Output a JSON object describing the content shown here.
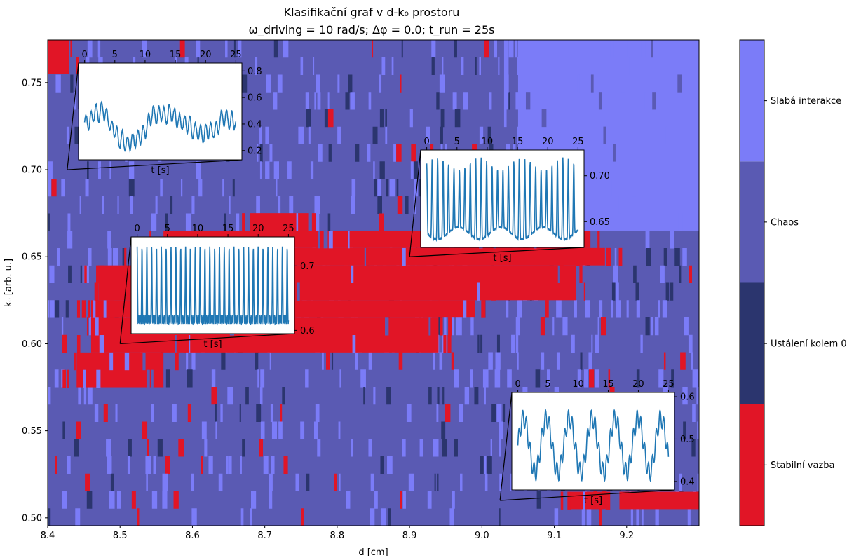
{
  "title": "Klasifikační graf v d-k₀ prostoru",
  "subtitle": "ω_driving = 10 rad/s; Δφ = 0.0; t_run = 25s",
  "colors": {
    "stable": "#e11526",
    "settled": "#2b356e",
    "chaos": "#5a5ab3",
    "weak": "#7b7cf8"
  },
  "chart_data": [
    {
      "type": "heatmap",
      "title": "Klasifikační graf v d-k₀ prostoru",
      "xlabel": "d [cm]",
      "ylabel": "k₀ [arb. u.]",
      "xlim": [
        8.4,
        9.3
      ],
      "ylim": [
        0.4955,
        0.7745
      ],
      "xticks": [
        8.4,
        8.5,
        8.6,
        8.7,
        8.8,
        8.9,
        9.0,
        9.1,
        9.2
      ],
      "xtick_labels": [
        "8.4",
        "8.5",
        "8.6",
        "8.7",
        "8.8",
        "8.9",
        "9.0",
        "9.1",
        "9.2"
      ],
      "yticks": [
        0.5,
        0.55,
        0.6,
        0.65,
        0.7,
        0.75
      ],
      "ytick_labels": [
        "0.50",
        "0.55",
        "0.60",
        "0.65",
        "0.70",
        "0.75"
      ],
      "colorbar": {
        "categories": [
          "Stabilní vazba",
          "Ustálení kolem 0",
          "Chaos",
          "Slabá interakce"
        ],
        "colors": [
          "#e11526",
          "#2b356e",
          "#5a5ab3",
          "#7b7cf8"
        ]
      },
      "regions": [
        {
          "class": "Stabilní vazba",
          "k0_from": 0.595,
          "k0_to": 0.615,
          "d_from": 8.46,
          "d_to": 8.94
        },
        {
          "class": "Stabilní vazba",
          "k0_from": 0.615,
          "k0_to": 0.625,
          "d_from": 8.46,
          "d_to": 8.99
        },
        {
          "class": "Stabilní vazba",
          "k0_from": 0.625,
          "k0_to": 0.645,
          "d_from": 8.47,
          "d_to": 9.13
        },
        {
          "class": "Stabilní vazba",
          "k0_from": 0.645,
          "k0_to": 0.655,
          "d_from": 8.52,
          "d_to": 9.17
        },
        {
          "class": "Stabilní vazba",
          "k0_from": 0.655,
          "k0_to": 0.665,
          "d_from": 8.56,
          "d_to": 9.15
        },
        {
          "class": "Stabilní vazba",
          "k0_from": 0.665,
          "k0_to": 0.675,
          "d_from": 8.68,
          "d_to": 8.76
        },
        {
          "class": "Stabilní vazba",
          "k0_from": 0.575,
          "k0_to": 0.595,
          "d_from": 8.44,
          "d_to": 8.56
        },
        {
          "class": "Stabilní vazba",
          "k0_from": 0.505,
          "k0_to": 0.515,
          "d_from": 9.12,
          "d_to": 9.17
        },
        {
          "class": "Stabilní vazba",
          "k0_from": 0.505,
          "k0_to": 0.515,
          "d_from": 9.19,
          "d_to": 9.3
        },
        {
          "class": "Stabilní vazba",
          "k0_from": 0.755,
          "k0_to": 0.7745,
          "d_from": 8.4,
          "d_to": 8.43
        },
        {
          "class": "Slabá interakce",
          "k0_from": 0.665,
          "k0_to": 0.7745,
          "d_from": 9.05,
          "d_to": 9.3
        }
      ]
    },
    {
      "type": "line",
      "xlabel": "t [s]",
      "at": {
        "d": 8.427,
        "k0": 0.7
      },
      "xlim": [
        -1,
        26
      ],
      "ylim": [
        0.13,
        0.86
      ],
      "xticks": [
        0,
        5,
        10,
        15,
        20,
        25
      ],
      "yticks": [
        0.2,
        0.4,
        0.6,
        0.8
      ],
      "ytick_labels": [
        "0.2",
        "0.4",
        "0.6",
        "0.8"
      ],
      "signal": {
        "kind": "chaotic",
        "mean": 0.42,
        "amp": 0.17,
        "min": 0.15,
        "max": 0.82
      }
    },
    {
      "type": "line",
      "xlabel": "t [s]",
      "at": {
        "d": 8.5,
        "k0": 0.6
      },
      "xlim": [
        -1,
        26
      ],
      "ylim": [
        0.595,
        0.745
      ],
      "xticks": [
        0,
        5,
        10,
        15,
        20,
        25
      ],
      "yticks": [
        0.6,
        0.7
      ],
      "ytick_labels": [
        "0.6",
        "0.7"
      ],
      "signal": {
        "kind": "periodic",
        "period": 0.8,
        "min": 0.61,
        "max": 0.73
      }
    },
    {
      "type": "line",
      "xlabel": "t [s]",
      "at": {
        "d": 8.9,
        "k0": 0.65
      },
      "xlim": [
        -1,
        26
      ],
      "ylim": [
        0.622,
        0.728
      ],
      "xticks": [
        0,
        5,
        10,
        15,
        20,
        25
      ],
      "yticks": [
        0.65,
        0.7
      ],
      "ytick_labels": [
        "0.65",
        "0.70"
      ],
      "signal": {
        "kind": "periodic-modulated",
        "period": 0.9,
        "min": 0.63,
        "max": 0.72
      }
    },
    {
      "type": "line",
      "xlabel": "t [s]",
      "at": {
        "d": 9.025,
        "k0": 0.51
      },
      "xlim": [
        -1,
        26
      ],
      "ylim": [
        0.38,
        0.61
      ],
      "xticks": [
        0,
        5,
        10,
        15,
        20,
        25
      ],
      "yticks": [
        0.4,
        0.5,
        0.6
      ],
      "ytick_labels": [
        "0.4",
        "0.5",
        "0.6"
      ],
      "signal": {
        "kind": "periodic-harmonic",
        "period": 3.8,
        "min": 0.4,
        "max": 0.57
      }
    }
  ]
}
